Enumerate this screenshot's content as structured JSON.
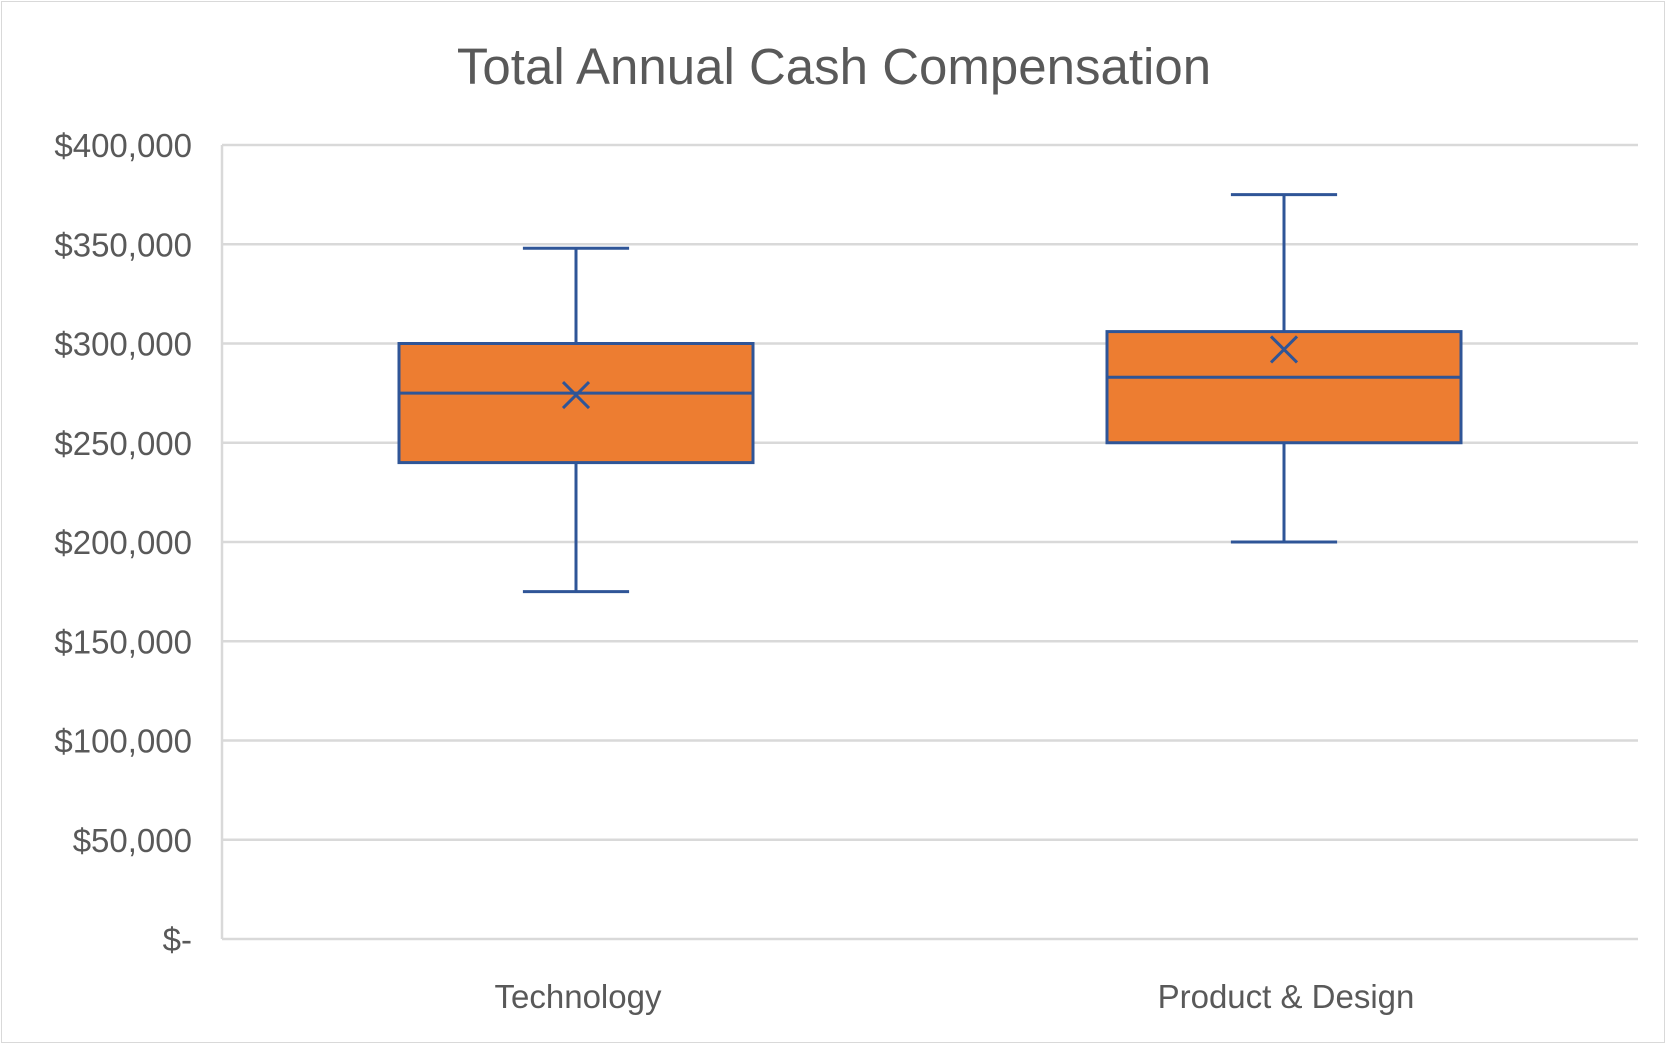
{
  "chart_data": {
    "type": "boxplot",
    "title": "Total Annual Cash Compensation",
    "xlabel": "",
    "ylabel": "",
    "ylim": [
      0,
      400000
    ],
    "y_ticks": [
      0,
      50000,
      100000,
      150000,
      200000,
      250000,
      300000,
      350000,
      400000
    ],
    "y_tick_labels": [
      "$-",
      "$50,000",
      "$100,000",
      "$150,000",
      "$200,000",
      "$250,000",
      "$300,000",
      "$350,000",
      "$400,000"
    ],
    "categories": [
      "Technology",
      "Product & Design"
    ],
    "boxes": [
      {
        "category": "Technology",
        "min": 175000,
        "q1": 240000,
        "median": 275000,
        "q3": 300000,
        "max": 348000,
        "mean": 274000
      },
      {
        "category": "Product & Design",
        "min": 200000,
        "q1": 250000,
        "median": 283000,
        "q3": 306000,
        "max": 375000,
        "mean": 297000
      }
    ],
    "grid": true,
    "legend": "none",
    "colors": {
      "box_fill": "#ED7D31",
      "box_stroke": "#2F5597",
      "gridline": "#d9d9d9",
      "text": "#595959"
    }
  }
}
